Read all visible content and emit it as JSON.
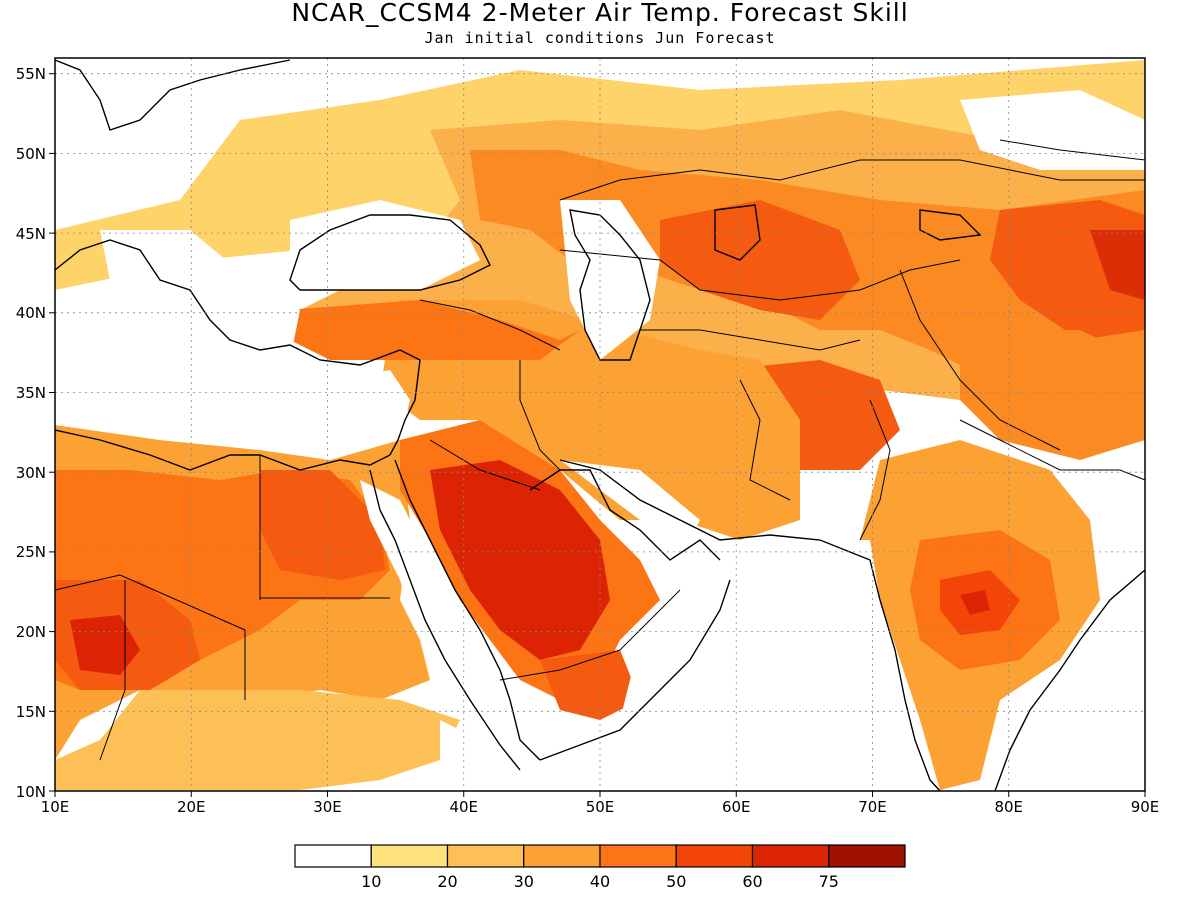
{
  "title": "NCAR_CCSM4 2-Meter Air Temp. Forecast Skill",
  "subtitle": "Jan initial conditions  Jun Forecast",
  "map": {
    "lon_range": [
      10,
      90
    ],
    "lat_range": [
      10,
      56
    ],
    "x_ticks": [
      "10E",
      "20E",
      "30E",
      "40E",
      "50E",
      "60E",
      "70E",
      "80E",
      "90E"
    ],
    "y_ticks": [
      "10N",
      "15N",
      "20N",
      "25N",
      "30N",
      "35N",
      "40N",
      "45N",
      "50N",
      "55N"
    ],
    "grid": "dotted"
  },
  "colorbar": {
    "levels": [
      "10",
      "20",
      "30",
      "40",
      "50",
      "60",
      "75"
    ],
    "colors": [
      "#ffffff",
      "#fde17a",
      "#fcc056",
      "#fca235",
      "#fc7414",
      "#f44508",
      "#dc2404",
      "#a01000"
    ]
  }
}
